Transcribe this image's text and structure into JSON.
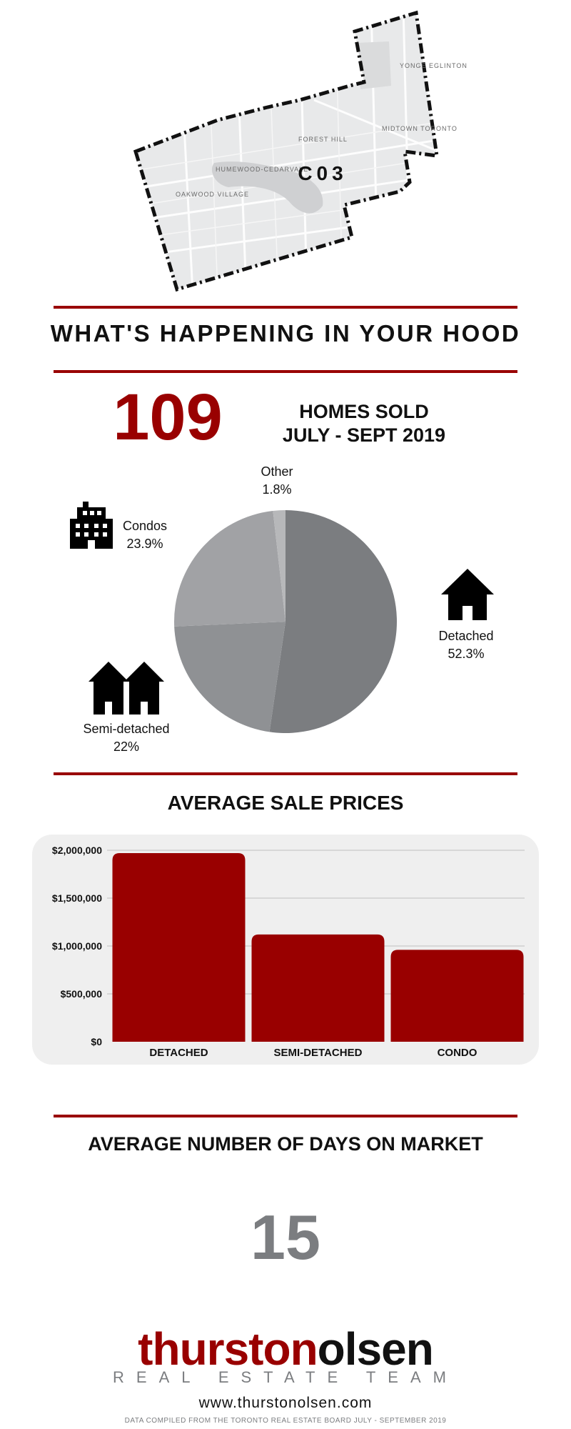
{
  "colors": {
    "accent": "#990000",
    "dark_gray": "#7b7d80",
    "mid_gray": "#8f9194",
    "light_gray": "#a1a2a5",
    "pale_gray": "#b7b8ba",
    "panel_bg": "#efefef",
    "text": "#111111"
  },
  "map": {
    "district": "C03",
    "neighbourhoods": [
      "FOREST HILL",
      "HUMEWOOD-CEDARVALE",
      "OAKWOOD VILLAGE",
      "MIDTOWN TORONTO",
      "YONGE EGLINTON"
    ]
  },
  "hood": {
    "title": "WHAT'S HAPPENING IN YOUR HOOD",
    "homes_sold_count": "109",
    "homes_sold_line1": "HOMES SOLD",
    "homes_sold_line2": "JULY - SEPT 2019"
  },
  "pie": {
    "other": {
      "name": "Other",
      "value": "1.8%"
    },
    "condos": {
      "name": "Condos",
      "value": "23.9%"
    },
    "detached": {
      "name": "Detached",
      "value": "52.3%"
    },
    "semi": {
      "name": "Semi-detached",
      "value": "22%"
    }
  },
  "prices": {
    "title": "AVERAGE SALE PRICES",
    "tick_labels": [
      "$0",
      "$500,000",
      "$1,000,000",
      "$1,500,000",
      "$2,000,000"
    ]
  },
  "days": {
    "title": "AVERAGE NUMBER OF DAYS ON MARKET",
    "value": "15"
  },
  "footer": {
    "logo_part1": "thurston",
    "logo_part2": "olsen",
    "logo_sub": "REAL ESTATE TEAM",
    "website": "www.thurstonolsen.com",
    "footnote": "DATA COMPILED FROM THE TORONTO REAL ESTATE BOARD JULY - SEPTEMBER 2019"
  },
  "chart_data": [
    {
      "type": "pie",
      "categories": [
        "Detached",
        "Semi-detached",
        "Condos",
        "Other"
      ],
      "values": [
        52.3,
        22,
        23.9,
        1.8
      ],
      "colors": [
        "#7b7d80",
        "#8f9194",
        "#a1a2a5",
        "#b7b8ba"
      ]
    },
    {
      "type": "bar",
      "categories": [
        "DETACHED",
        "SEMI-DETACHED",
        "CONDO"
      ],
      "values": [
        1970000,
        1120000,
        960000
      ],
      "ylim": [
        0,
        2000000
      ],
      "yticks": [
        0,
        500000,
        1000000,
        1500000,
        2000000
      ],
      "grid": true
    }
  ]
}
